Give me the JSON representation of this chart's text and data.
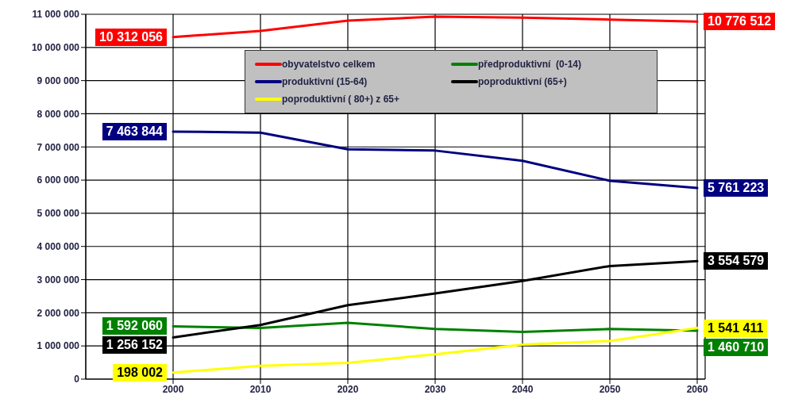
{
  "chart_data": {
    "type": "line",
    "categories": [
      "2000",
      "2010",
      "2020",
      "2030",
      "2040",
      "2050",
      "2060"
    ],
    "series": [
      {
        "name": "obyvatelstvo celkem",
        "color": "#ff0000",
        "values": [
          10312056,
          10500000,
          10810000,
          10930000,
          10900000,
          10840000,
          10776512
        ],
        "value_labels": [
          "10 312 056",
          null,
          null,
          null,
          null,
          null,
          "10 776 512"
        ]
      },
      {
        "name": "předproduktivní  (0-14)",
        "color": "#008000",
        "values": [
          1592060,
          1540000,
          1700000,
          1510000,
          1420000,
          1510000,
          1460710
        ],
        "value_labels": [
          "1 592 060",
          null,
          null,
          null,
          null,
          null,
          "1 460 710"
        ]
      },
      {
        "name": "produktivní (15-64)",
        "color": "#000080",
        "values": [
          7463844,
          7430000,
          6930000,
          6890000,
          6580000,
          5980000,
          5761223
        ],
        "value_labels": [
          "7 463 844",
          null,
          null,
          null,
          null,
          null,
          "5 761 223"
        ]
      },
      {
        "name": "poproduktivní (65+)",
        "color": "#000000",
        "values": [
          1256152,
          1630000,
          2230000,
          2580000,
          2960000,
          3410000,
          3554579
        ],
        "value_labels": [
          "1 256 152",
          null,
          null,
          null,
          null,
          null,
          "3 554 579"
        ]
      },
      {
        "name": "poproduktivní ( 80+) z 65+",
        "color": "#ffff00",
        "values": [
          198002,
          400000,
          490000,
          750000,
          1040000,
          1150000,
          1541411
        ],
        "value_labels": [
          "198 002",
          null,
          null,
          null,
          null,
          null,
          "1 541 411"
        ]
      }
    ],
    "ylim": [
      0,
      11000000
    ],
    "yticks": [
      0,
      1000000,
      2000000,
      3000000,
      4000000,
      5000000,
      6000000,
      7000000,
      8000000,
      9000000,
      10000000,
      11000000
    ],
    "grid": true,
    "legend": "top",
    "marker": "none",
    "line_style": "solid"
  }
}
